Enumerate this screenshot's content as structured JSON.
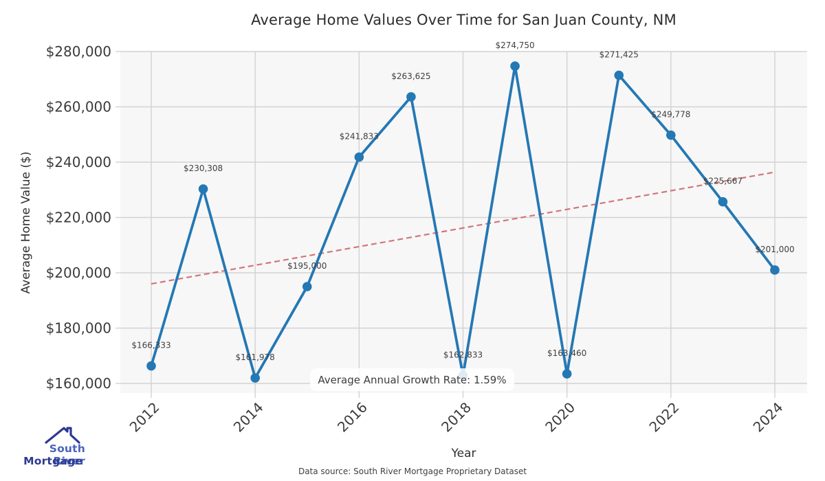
{
  "title": "Average Home Values Over Time for San Juan County, NM",
  "chart_data": {
    "type": "line",
    "x": [
      2012,
      2013,
      2014,
      2015,
      2016,
      2017,
      2018,
      2019,
      2020,
      2021,
      2022,
      2023,
      2024
    ],
    "values": [
      166333,
      230308,
      161978,
      195000,
      241833,
      263625,
      162833,
      274750,
      163460,
      271425,
      249778,
      225667,
      201000
    ],
    "value_labels": [
      "$166,333",
      "$230,308",
      "$161,978",
      "$195,000",
      "$241,833",
      "$263,625",
      "$162,833",
      "$274,750",
      "$163,460",
      "$271,425",
      "$249,778",
      "$225,667",
      "$201,000"
    ],
    "title": "Average Home Values Over Time for San Juan County, NM",
    "xlabel": "Year",
    "ylabel": "Average Home Value ($)",
    "ylim": [
      160000,
      280000
    ],
    "yticks": [
      160000,
      180000,
      200000,
      220000,
      240000,
      260000,
      280000
    ],
    "ytick_labels": [
      "$160,000",
      "$180,000",
      "$200,000",
      "$220,000",
      "$240,000",
      "$260,000",
      "$280,000"
    ],
    "xticks": [
      2012,
      2014,
      2016,
      2018,
      2020,
      2022,
      2024
    ],
    "xtick_labels": [
      "2012",
      "2014",
      "2016",
      "2018",
      "2020",
      "2022",
      "2024"
    ],
    "grid": true,
    "legend": "none",
    "trend": {
      "style": "dashed",
      "x": [
        2012,
        2024
      ],
      "values": [
        196000,
        236400
      ]
    },
    "annotation": "Average Annual Growth Rate: 1.59%",
    "colors": {
      "line": "#2478b4",
      "marker": "#2478b4",
      "trend": "#d37579",
      "grid": "#d2d2d2",
      "plot_bg": "#f7f7f7",
      "tick_text": "#3b3b3b",
      "label_text": "#404040"
    }
  },
  "branding": {
    "logo_line1": "South River",
    "logo_line2": "Mortgage"
  },
  "footer": {
    "source": "Data source: South River Mortgage Proprietary Dataset"
  }
}
